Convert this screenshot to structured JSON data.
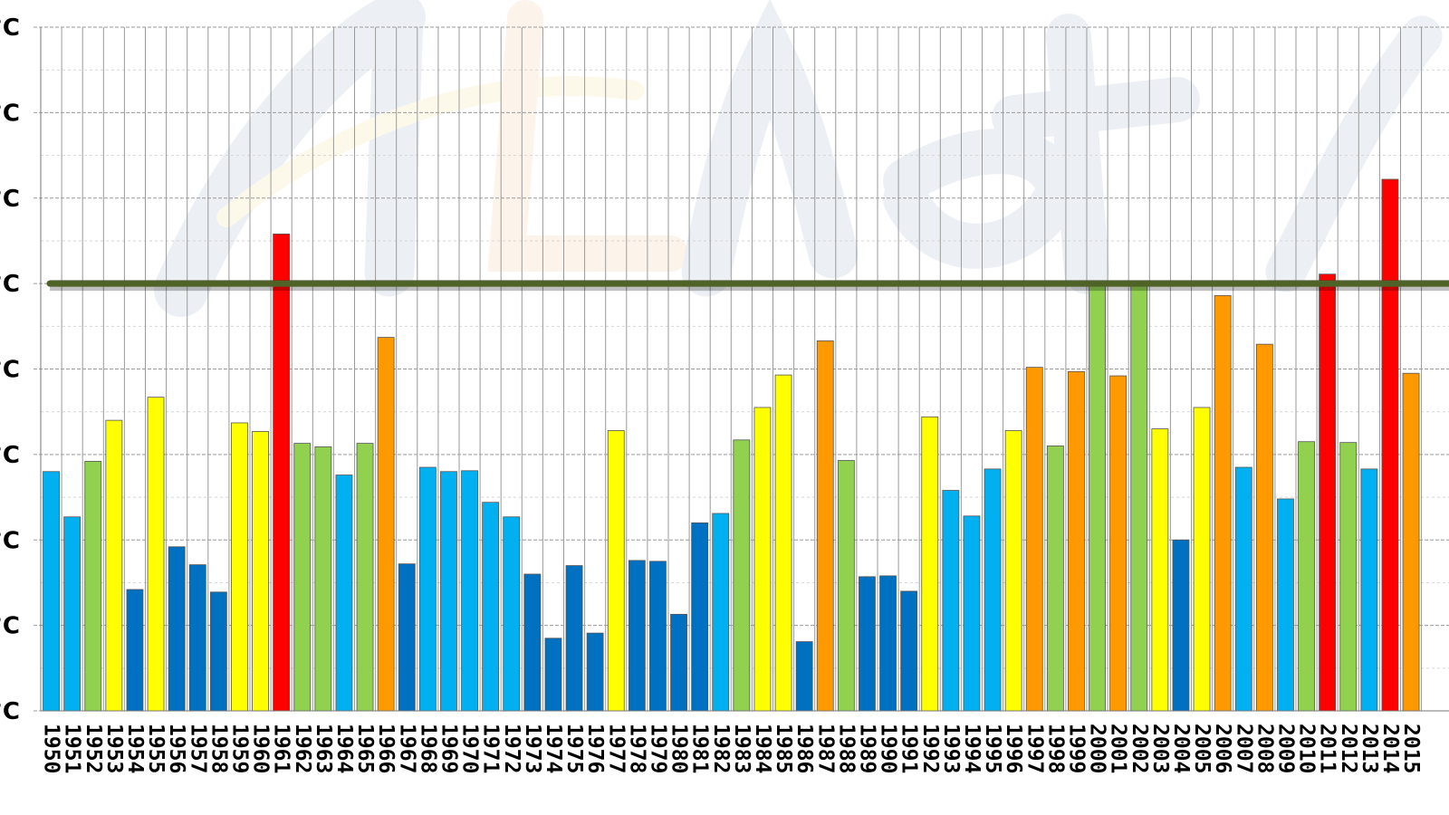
{
  "chart_data": {
    "type": "bar",
    "title": "",
    "xlabel": "",
    "ylabel": "",
    "y_tick_labels": [
      "°C",
      "°C",
      "°C",
      "°C",
      "°C",
      "°C",
      "°C",
      "°C",
      "°C"
    ],
    "grid": true,
    "reference_line": {
      "value": 5.0,
      "color": "#4f6228"
    },
    "categories": [
      "1950",
      "1951",
      "1952",
      "1953",
      "1954",
      "1955",
      "1956",
      "1957",
      "1958",
      "1959",
      "1960",
      "1961",
      "1962",
      "1963",
      "1964",
      "1965",
      "1966",
      "1967",
      "1968",
      "1969",
      "1970",
      "1971",
      "1972",
      "1973",
      "1974",
      "1975",
      "1976",
      "1977",
      "1978",
      "1979",
      "1980",
      "1981",
      "1982",
      "1983",
      "1984",
      "1985",
      "1986",
      "1987",
      "1988",
      "1989",
      "1990",
      "1991",
      "1992",
      "1993",
      "1994",
      "1995",
      "1996",
      "1997",
      "1998",
      "1999",
      "2000",
      "2001",
      "2002",
      "2003",
      "2004",
      "2005",
      "2006",
      "2007",
      "2008",
      "2009",
      "2010",
      "2011",
      "2012",
      "2013",
      "2014",
      "2015"
    ],
    "values": [
      2.8,
      2.27,
      2.92,
      3.4,
      1.42,
      3.67,
      1.92,
      1.71,
      1.39,
      3.37,
      3.27,
      5.58,
      3.13,
      3.09,
      2.76,
      3.13,
      4.37,
      1.72,
      2.85,
      2.8,
      2.81,
      2.44,
      2.27,
      1.6,
      0.85,
      1.7,
      0.91,
      3.28,
      1.76,
      1.75,
      1.13,
      2.2,
      2.31,
      3.17,
      3.55,
      3.93,
      0.81,
      4.33,
      2.93,
      1.57,
      1.58,
      1.4,
      3.44,
      2.58,
      2.28,
      2.83,
      3.28,
      4.02,
      3.1,
      3.97,
      5.0,
      3.92,
      5.0,
      3.3,
      2.0,
      3.55,
      4.86,
      2.85,
      4.29,
      2.48,
      3.15,
      5.11,
      3.14,
      2.83,
      6.22,
      3.95
    ],
    "colors": [
      "#00b0f0",
      "#00b0f0",
      "#92d050",
      "#ffff00",
      "#0070c0",
      "#ffff00",
      "#0070c0",
      "#0070c0",
      "#0070c0",
      "#ffff00",
      "#ffff00",
      "#ff0000",
      "#92d050",
      "#92d050",
      "#00b0f0",
      "#92d050",
      "#ff9900",
      "#0070c0",
      "#00b0f0",
      "#00b0f0",
      "#00b0f0",
      "#00b0f0",
      "#00b0f0",
      "#0070c0",
      "#0070c0",
      "#0070c0",
      "#0070c0",
      "#ffff00",
      "#0070c0",
      "#0070c0",
      "#0070c0",
      "#0070c0",
      "#00b0f0",
      "#92d050",
      "#ffff00",
      "#ffff00",
      "#0070c0",
      "#ff9900",
      "#92d050",
      "#0070c0",
      "#0070c0",
      "#0070c0",
      "#ffff00",
      "#00b0f0",
      "#00b0f0",
      "#00b0f0",
      "#ffff00",
      "#ff9900",
      "#92d050",
      "#ff9900",
      "#92d050",
      "#ff9900",
      "#92d050",
      "#ffff00",
      "#0070c0",
      "#ffff00",
      "#ff9900",
      "#00b0f0",
      "#ff9900",
      "#00b0f0",
      "#92d050",
      "#ff0000",
      "#92d050",
      "#00b0f0",
      "#ff0000",
      "#ff9900"
    ]
  }
}
